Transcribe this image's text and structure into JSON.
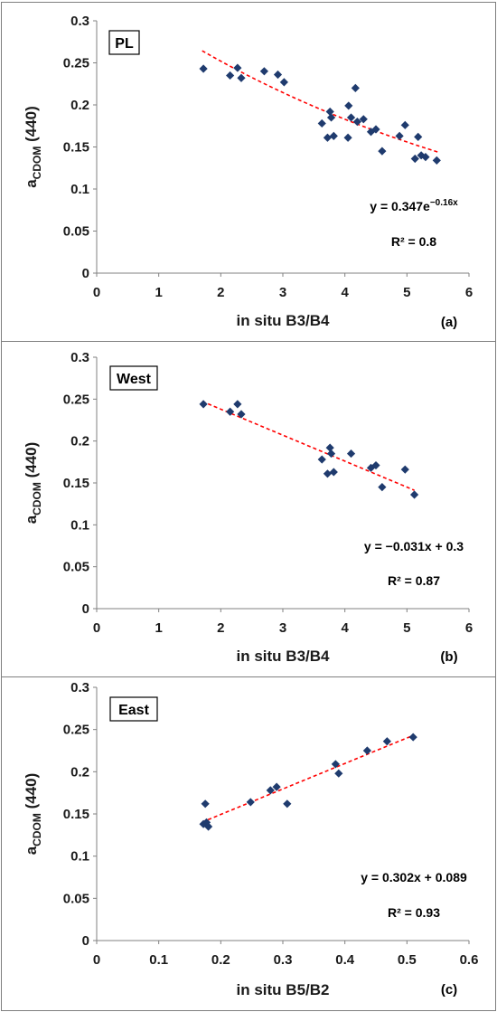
{
  "chart_data": [
    {
      "type": "scatter",
      "panel_tag": "PL",
      "panel_letter": "(a)",
      "xlabel": "in situ B3/B4",
      "ylabel_main": "a",
      "ylabel_sub": "CDOM",
      "ylabel_tail": " (440)",
      "xlim": [
        0,
        6
      ],
      "ylim": [
        0,
        0.3
      ],
      "xticks": [
        "0",
        "1",
        "2",
        "3",
        "4",
        "5",
        "6"
      ],
      "yticks": [
        "0",
        "0.05",
        "0.1",
        "0.15",
        "0.2",
        "0.25",
        "0.3"
      ],
      "equation_main": "y = 0.347e",
      "equation_sup": "−0.16x",
      "r2": "R² = 0.8",
      "marker_color": "#1f3b6e",
      "trend_color": "#ff0000",
      "trend": {
        "kind": "exponential",
        "a": 0.347,
        "b": -0.16,
        "x_range": [
          1.7,
          5.5
        ]
      },
      "points": [
        [
          1.72,
          0.243
        ],
        [
          2.15,
          0.235
        ],
        [
          2.27,
          0.244
        ],
        [
          2.33,
          0.232
        ],
        [
          2.7,
          0.24
        ],
        [
          2.92,
          0.236
        ],
        [
          3.02,
          0.227
        ],
        [
          3.63,
          0.178
        ],
        [
          3.72,
          0.161
        ],
        [
          3.76,
          0.192
        ],
        [
          3.78,
          0.185
        ],
        [
          3.82,
          0.163
        ],
        [
          4.05,
          0.161
        ],
        [
          4.06,
          0.199
        ],
        [
          4.1,
          0.185
        ],
        [
          4.17,
          0.22
        ],
        [
          4.2,
          0.18
        ],
        [
          4.3,
          0.183
        ],
        [
          4.42,
          0.168
        ],
        [
          4.5,
          0.171
        ],
        [
          4.6,
          0.145
        ],
        [
          4.88,
          0.163
        ],
        [
          4.97,
          0.176
        ],
        [
          5.13,
          0.136
        ],
        [
          5.18,
          0.162
        ],
        [
          5.23,
          0.14
        ],
        [
          5.3,
          0.138
        ],
        [
          5.48,
          0.134
        ]
      ]
    },
    {
      "type": "scatter",
      "panel_tag": "West",
      "panel_letter": "(b)",
      "xlabel": "in situ B3/B4",
      "ylabel_main": "a",
      "ylabel_sub": "CDOM",
      "ylabel_tail": " (440)",
      "xlim": [
        0,
        6
      ],
      "ylim": [
        0,
        0.3
      ],
      "xticks": [
        "0",
        "1",
        "2",
        "3",
        "4",
        "5",
        "6"
      ],
      "yticks": [
        "0",
        "0.05",
        "0.1",
        "0.15",
        "0.2",
        "0.25",
        "0.3"
      ],
      "equation_main": "y = −0.031x + 0.3",
      "equation_sup": "",
      "r2": "R² = 0.87",
      "marker_color": "#1f3b6e",
      "trend_color": "#ff0000",
      "trend": {
        "kind": "linear",
        "a": -0.031,
        "b": 0.3,
        "x_range": [
          1.7,
          5.12
        ]
      },
      "points": [
        [
          1.72,
          0.244
        ],
        [
          2.15,
          0.235
        ],
        [
          2.27,
          0.244
        ],
        [
          2.33,
          0.232
        ],
        [
          3.63,
          0.178
        ],
        [
          3.72,
          0.161
        ],
        [
          3.76,
          0.192
        ],
        [
          3.78,
          0.185
        ],
        [
          3.82,
          0.163
        ],
        [
          4.1,
          0.185
        ],
        [
          4.42,
          0.168
        ],
        [
          4.5,
          0.171
        ],
        [
          4.6,
          0.145
        ],
        [
          4.97,
          0.166
        ],
        [
          5.12,
          0.136
        ]
      ]
    },
    {
      "type": "scatter",
      "panel_tag": "East",
      "panel_letter": "(c)",
      "xlabel": "in situ B5/B2",
      "ylabel_main": "a",
      "ylabel_sub": "CDOM",
      "ylabel_tail": " (440)",
      "xlim": [
        0,
        0.6
      ],
      "ylim": [
        0,
        0.3
      ],
      "xticks": [
        "0",
        "0.1",
        "0.2",
        "0.3",
        "0.4",
        "0.5",
        "0.6"
      ],
      "yticks": [
        "0",
        "0.05",
        "0.1",
        "0.15",
        "0.2",
        "0.25",
        "0.3"
      ],
      "equation_main": "y = 0.302x + 0.089",
      "equation_sup": "",
      "r2": "R² = 0.93",
      "marker_color": "#1f3b6e",
      "trend_color": "#ff0000",
      "trend": {
        "kind": "linear",
        "a": 0.302,
        "b": 0.089,
        "x_range": [
          0.17,
          0.51
        ]
      },
      "points": [
        [
          0.172,
          0.138
        ],
        [
          0.175,
          0.162
        ],
        [
          0.177,
          0.14
        ],
        [
          0.18,
          0.135
        ],
        [
          0.248,
          0.164
        ],
        [
          0.28,
          0.178
        ],
        [
          0.29,
          0.182
        ],
        [
          0.307,
          0.162
        ],
        [
          0.385,
          0.209
        ],
        [
          0.39,
          0.198
        ],
        [
          0.436,
          0.225
        ],
        [
          0.468,
          0.236
        ],
        [
          0.51,
          0.241
        ]
      ]
    }
  ]
}
